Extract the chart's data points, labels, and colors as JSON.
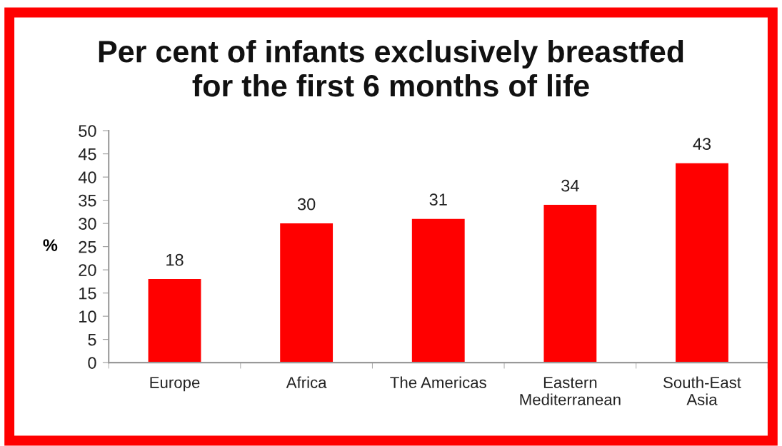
{
  "chart_data": {
    "type": "bar",
    "title": "Per cent of infants exclusively breastfed\nfor the first 6 months of life",
    "ylabel": "%",
    "categories": [
      "Europe",
      "Africa",
      "The Americas",
      "Eastern\nMediterranean",
      "South-East\nAsia"
    ],
    "values": [
      18,
      30,
      31,
      34,
      43
    ],
    "color": "#ff0000",
    "ylim": [
      0,
      50
    ],
    "yticks": [
      0,
      5,
      10,
      15,
      20,
      25,
      30,
      35,
      40,
      45,
      50
    ],
    "grid": false,
    "data_labels": true
  }
}
